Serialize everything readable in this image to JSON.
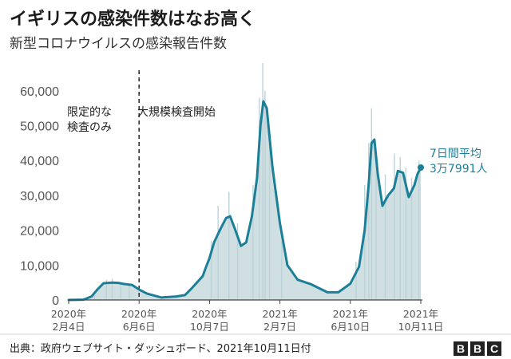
{
  "title": "イギリスの感染件数はなお高く",
  "subtitle": "新型コロナウイルスの感染報告件数",
  "source": "出典：政府ウェブサイト・ダッシュボード、2021年10月11日付",
  "logo": [
    "B",
    "B",
    "C"
  ],
  "colors": {
    "line": "#1b7f97",
    "area": "#cfdfe2",
    "bars": "#bcd3d8",
    "axis": "#444444",
    "grid": "#d6d6d6",
    "annotation": "#1b7f97"
  },
  "chart_data": {
    "type": "area",
    "title": "新型コロナウイルスの感染報告件数",
    "xlabel": "",
    "ylabel": "",
    "ylim": [
      0,
      65000
    ],
    "grid": false,
    "y_ticks": [
      0,
      10000,
      20000,
      30000,
      40000,
      50000,
      60000
    ],
    "y_tick_labels": [
      "0",
      "10,000",
      "20,000",
      "30,000",
      "40,000",
      "50,000",
      "60,000"
    ],
    "x_ticks": [
      {
        "date": "2020-02-04",
        "label": [
          "2020年",
          "2月4日"
        ]
      },
      {
        "date": "2020-06-06",
        "label": [
          "2020年",
          "6月6日"
        ]
      },
      {
        "date": "2020-10-07",
        "label": [
          "2020年",
          "10月7日"
        ]
      },
      {
        "date": "2021-02-07",
        "label": [
          "2021年",
          "2月7日"
        ]
      },
      {
        "date": "2021-06-10",
        "label": [
          "2021年",
          "6月10日"
        ]
      },
      {
        "date": "2021-10-11",
        "label": [
          "2021年",
          "10月11日"
        ]
      }
    ],
    "series": [
      {
        "name": "7日間平均",
        "x": [
          "2020-02-04",
          "2020-03-01",
          "2020-03-15",
          "2020-03-25",
          "2020-04-05",
          "2020-04-20",
          "2020-05-01",
          "2020-05-10",
          "2020-05-25",
          "2020-06-06",
          "2020-06-20",
          "2020-07-15",
          "2020-08-10",
          "2020-08-25",
          "2020-09-05",
          "2020-09-15",
          "2020-09-25",
          "2020-10-01",
          "2020-10-07",
          "2020-10-15",
          "2020-10-25",
          "2020-11-05",
          "2020-11-12",
          "2020-11-20",
          "2020-12-01",
          "2020-12-10",
          "2020-12-20",
          "2020-12-29",
          "2021-01-04",
          "2021-01-09",
          "2021-01-15",
          "2021-01-25",
          "2021-02-07",
          "2021-02-20",
          "2021-03-10",
          "2021-04-01",
          "2021-05-01",
          "2021-05-20",
          "2021-06-10",
          "2021-06-25",
          "2021-07-05",
          "2021-07-12",
          "2021-07-17",
          "2021-07-22",
          "2021-07-28",
          "2021-08-05",
          "2021-08-15",
          "2021-08-25",
          "2021-09-01",
          "2021-09-10",
          "2021-09-20",
          "2021-09-30",
          "2021-10-05",
          "2021-10-11"
        ],
        "values": [
          0,
          100,
          1000,
          3000,
          4800,
          5000,
          4900,
          4600,
          4300,
          3000,
          1800,
          700,
          1000,
          1400,
          3200,
          5000,
          6800,
          9500,
          12000,
          16500,
          20000,
          23500,
          24000,
          20500,
          15500,
          16500,
          24000,
          35000,
          50000,
          57000,
          55000,
          38000,
          22000,
          10000,
          5800,
          4600,
          2200,
          2200,
          4700,
          9500,
          20000,
          33000,
          45000,
          46000,
          36000,
          27000,
          30000,
          32000,
          37000,
          36500,
          29500,
          33000,
          36000,
          37991
        ]
      }
    ],
    "daily_cases": {
      "x": [
        "2020-03-20",
        "2020-04-10",
        "2020-04-20",
        "2020-05-05",
        "2020-05-20",
        "2020-10-10",
        "2020-10-22",
        "2020-11-10",
        "2020-11-25",
        "2020-12-22",
        "2021-01-02",
        "2021-01-08",
        "2021-01-12",
        "2021-01-20",
        "2021-02-10",
        "2021-06-20",
        "2021-07-05",
        "2021-07-12",
        "2021-07-17",
        "2021-07-25",
        "2021-08-10",
        "2021-08-26",
        "2021-09-05",
        "2021-09-15",
        "2021-09-25",
        "2021-10-08"
      ],
      "values": [
        2500,
        5800,
        6100,
        4900,
        4200,
        17000,
        27000,
        31000,
        22000,
        33000,
        58000,
        68000,
        60000,
        44000,
        17000,
        11000,
        33000,
        45000,
        55000,
        38000,
        36000,
        42000,
        41000,
        38000,
        35000,
        40000
      ]
    },
    "annotations": [
      {
        "text": [
          "限定的な",
          "検査のみ"
        ]
      },
      {
        "text": [
          "大規模検査開始"
        ]
      },
      {
        "text": [
          "7日間平均",
          "3万7991人"
        ]
      }
    ],
    "divider_date": "2020-06-06"
  }
}
